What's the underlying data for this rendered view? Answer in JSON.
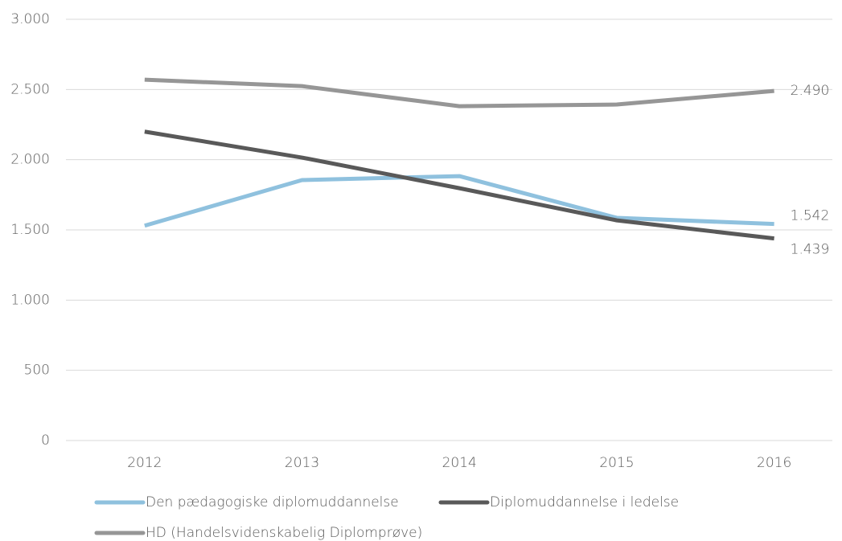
{
  "chart_data": {
    "type": "line",
    "categories": [
      "2012",
      "2013",
      "2014",
      "2015",
      "2016"
    ],
    "series": [
      {
        "name": "Den pædagogiske diplomuddannelse",
        "color": "#8fc1de",
        "values": [
          1530,
          1855,
          1883,
          1586,
          1542
        ],
        "value_labels": [
          null,
          null,
          null,
          null,
          "1.542"
        ]
      },
      {
        "name": "Diplomuddannelse i ledelse",
        "color": "#595959",
        "values": [
          2200,
          2015,
          1797,
          1568,
          1439
        ],
        "value_labels": [
          null,
          null,
          null,
          null,
          "1.439"
        ]
      },
      {
        "name": "HD (Handelsvidenskabelig Diplomprøve)",
        "color": "#969696",
        "values": [
          2570,
          2524,
          2381,
          2393,
          2490
        ],
        "value_labels": [
          null,
          null,
          null,
          null,
          "2.490"
        ]
      }
    ],
    "ylim": [
      0,
      3000
    ],
    "yticks": [
      0,
      500,
      {
        "value": 1000,
        "label": "1.000"
      },
      {
        "value": 1500,
        "label": "1.500"
      },
      {
        "value": 2000,
        "label": "2.000"
      },
      {
        "value": 2500,
        "label": "2.500"
      },
      {
        "value": 3000,
        "label": "3.000"
      }
    ],
    "grid": true,
    "legend": "bottom"
  }
}
